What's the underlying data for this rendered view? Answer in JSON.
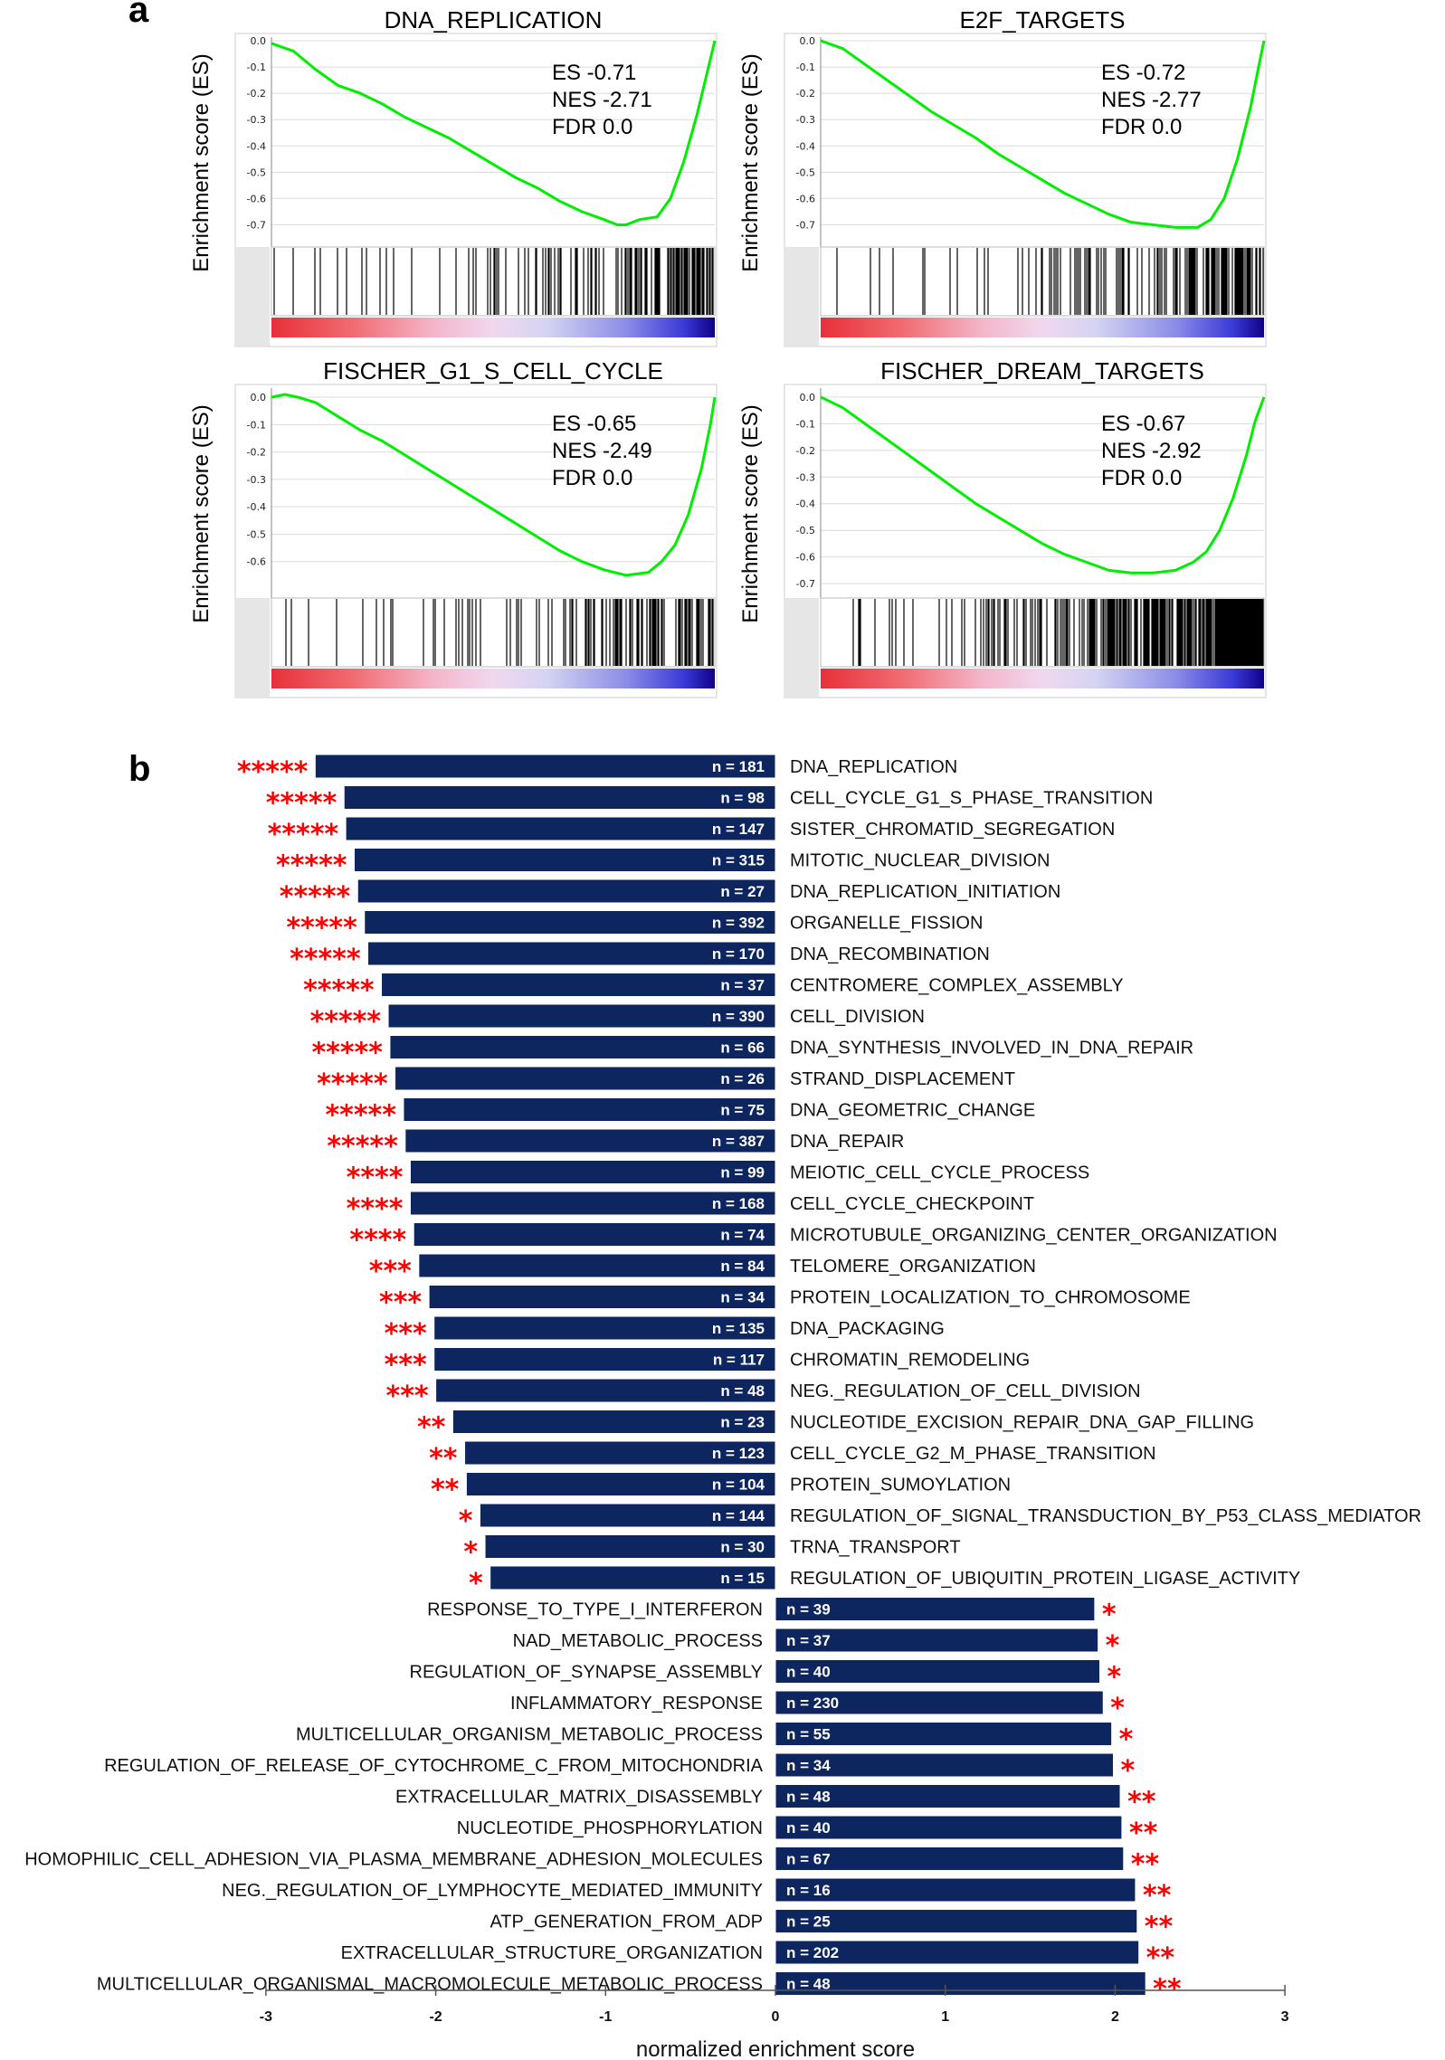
{
  "panel_a_label": "a",
  "panel_b_label": "b",
  "colors": {
    "bar": "#0e2660",
    "curve": "#00ee00",
    "stars": "#ff0000"
  },
  "chart_data": [
    {
      "type": "line",
      "title": "DNA_REPLICATION",
      "ylabel": "Enrichment score (ES)",
      "yticks": [
        "0.0",
        "-0.1",
        "-0.2",
        "-0.3",
        "-0.4",
        "-0.5",
        "-0.6",
        "-0.7"
      ],
      "ylim": [
        -0.75,
        0.0
      ],
      "stats": {
        "es": "ES -0.71",
        "nes": "NES -2.71",
        "fdr": "FDR 0.0"
      },
      "curve": {
        "x": [
          0,
          0.05,
          0.1,
          0.15,
          0.2,
          0.25,
          0.3,
          0.35,
          0.4,
          0.45,
          0.5,
          0.55,
          0.6,
          0.65,
          0.7,
          0.75,
          0.78,
          0.8,
          0.83,
          0.87,
          0.9,
          0.93,
          0.96,
          0.98,
          1.0
        ],
        "y": [
          -0.01,
          -0.04,
          -0.11,
          -0.17,
          -0.2,
          -0.24,
          -0.29,
          -0.33,
          -0.37,
          -0.42,
          -0.47,
          -0.52,
          -0.56,
          -0.61,
          -0.65,
          -0.68,
          -0.7,
          -0.7,
          -0.68,
          -0.67,
          -0.6,
          -0.46,
          -0.28,
          -0.14,
          0.0
        ]
      }
    },
    {
      "type": "line",
      "title": "E2F_TARGETS",
      "ylabel": "Enrichment score (ES)",
      "yticks": [
        "0.0",
        "-0.1",
        "-0.2",
        "-0.3",
        "-0.4",
        "-0.5",
        "-0.6",
        "-0.7"
      ],
      "ylim": [
        -0.75,
        0.0
      ],
      "stats": {
        "es": "ES -0.72",
        "nes": "NES -2.77",
        "fdr": "FDR 0.0"
      },
      "curve": {
        "x": [
          0,
          0.05,
          0.1,
          0.15,
          0.2,
          0.25,
          0.3,
          0.35,
          0.4,
          0.45,
          0.5,
          0.55,
          0.6,
          0.65,
          0.7,
          0.75,
          0.8,
          0.85,
          0.88,
          0.91,
          0.94,
          0.97,
          0.99,
          1.0
        ],
        "y": [
          0.0,
          -0.03,
          -0.09,
          -0.15,
          -0.21,
          -0.27,
          -0.32,
          -0.37,
          -0.43,
          -0.48,
          -0.53,
          -0.58,
          -0.62,
          -0.66,
          -0.69,
          -0.7,
          -0.71,
          -0.71,
          -0.68,
          -0.6,
          -0.45,
          -0.25,
          -0.08,
          0.0
        ]
      }
    },
    {
      "type": "line",
      "title": "FISCHER_G1_S_CELL_CYCLE",
      "ylabel": "Enrichment score (ES)",
      "yticks": [
        "0.0",
        "-0.1",
        "-0.2",
        "-0.3",
        "-0.4",
        "-0.5",
        "-0.6"
      ],
      "ylim": [
        -0.7,
        0.02
      ],
      "stats": {
        "es": "ES -0.65",
        "nes": "NES -2.49",
        "fdr": "FDR 0.0"
      },
      "curve": {
        "x": [
          0,
          0.03,
          0.06,
          0.1,
          0.15,
          0.2,
          0.25,
          0.3,
          0.35,
          0.4,
          0.45,
          0.5,
          0.55,
          0.6,
          0.65,
          0.7,
          0.75,
          0.8,
          0.85,
          0.88,
          0.91,
          0.94,
          0.97,
          0.99,
          1.0
        ],
        "y": [
          0.0,
          0.01,
          0.0,
          -0.02,
          -0.07,
          -0.12,
          -0.16,
          -0.21,
          -0.26,
          -0.31,
          -0.36,
          -0.41,
          -0.46,
          -0.51,
          -0.56,
          -0.6,
          -0.63,
          -0.65,
          -0.64,
          -0.6,
          -0.54,
          -0.43,
          -0.26,
          -0.1,
          0.0
        ]
      }
    },
    {
      "type": "line",
      "title": "FISCHER_DREAM_TARGETS",
      "ylabel": "Enrichment score (ES)",
      "yticks": [
        "0.0",
        "-0.1",
        "-0.2",
        "-0.3",
        "-0.4",
        "-0.5",
        "-0.6",
        "-0.7"
      ],
      "ylim": [
        -0.72,
        0.02
      ],
      "stats": {
        "es": "ES -0.67",
        "nes": "NES -2.92",
        "fdr": "FDR 0.0"
      },
      "curve": {
        "x": [
          0,
          0.05,
          0.1,
          0.15,
          0.2,
          0.25,
          0.3,
          0.35,
          0.4,
          0.45,
          0.5,
          0.55,
          0.6,
          0.65,
          0.7,
          0.75,
          0.8,
          0.84,
          0.87,
          0.9,
          0.93,
          0.96,
          0.98,
          1.0
        ],
        "y": [
          0.0,
          -0.04,
          -0.1,
          -0.16,
          -0.22,
          -0.28,
          -0.34,
          -0.4,
          -0.45,
          -0.5,
          -0.55,
          -0.59,
          -0.62,
          -0.65,
          -0.66,
          -0.66,
          -0.65,
          -0.62,
          -0.58,
          -0.5,
          -0.38,
          -0.22,
          -0.09,
          0.0
        ]
      }
    },
    {
      "type": "bar",
      "orientation": "horizontal",
      "xlabel": "normalized enrichment score",
      "xlim": [
        -3,
        3
      ],
      "xticks": [
        "-3",
        "-2",
        "-1",
        "0",
        "1",
        "2",
        "3"
      ],
      "bars": [
        {
          "term": "DNA_REPLICATION",
          "nes": -2.71,
          "n": "n = 181",
          "stars": "*****"
        },
        {
          "term": "CELL_CYCLE_G1_S_PHASE_TRANSITION",
          "nes": -2.54,
          "n": "n = 98",
          "stars": "*****"
        },
        {
          "term": "SISTER_CHROMATID_SEGREGATION",
          "nes": -2.53,
          "n": "n = 147",
          "stars": "*****"
        },
        {
          "term": "MITOTIC_NUCLEAR_DIVISION",
          "nes": -2.48,
          "n": "n = 315",
          "stars": "*****"
        },
        {
          "term": "DNA_REPLICATION_INITIATION",
          "nes": -2.46,
          "n": "n = 27",
          "stars": "*****"
        },
        {
          "term": "ORGANELLE_FISSION",
          "nes": -2.42,
          "n": "n = 392",
          "stars": "*****"
        },
        {
          "term": "DNA_RECOMBINATION",
          "nes": -2.4,
          "n": "n = 170",
          "stars": "*****"
        },
        {
          "term": "CENTROMERE_COMPLEX_ASSEMBLY",
          "nes": -2.32,
          "n": "n = 37",
          "stars": "*****"
        },
        {
          "term": "CELL_DIVISION",
          "nes": -2.28,
          "n": "n = 390",
          "stars": "*****"
        },
        {
          "term": "DNA_SYNTHESIS_INVOLVED_IN_DNA_REPAIR",
          "nes": -2.27,
          "n": "n = 66",
          "stars": "*****"
        },
        {
          "term": "STRAND_DISPLACEMENT",
          "nes": -2.24,
          "n": "n = 26",
          "stars": "*****"
        },
        {
          "term": "DNA_GEOMETRIC_CHANGE",
          "nes": -2.19,
          "n": "n = 75",
          "stars": "*****"
        },
        {
          "term": "DNA_REPAIR",
          "nes": -2.18,
          "n": "n = 387",
          "stars": "*****"
        },
        {
          "term": "MEIOTIC_CELL_CYCLE_PROCESS",
          "nes": -2.15,
          "n": "n = 99",
          "stars": "****"
        },
        {
          "term": "CELL_CYCLE_CHECKPOINT",
          "nes": -2.15,
          "n": "n = 168",
          "stars": "****"
        },
        {
          "term": "MICROTUBULE_ORGANIZING_CENTER_ORGANIZATION",
          "nes": -2.13,
          "n": "n = 74",
          "stars": "****"
        },
        {
          "term": "TELOMERE_ORGANIZATION",
          "nes": -2.1,
          "n": "n = 84",
          "stars": "***"
        },
        {
          "term": "PROTEIN_LOCALIZATION_TO_CHROMOSOME",
          "nes": -2.04,
          "n": "n = 34",
          "stars": "***"
        },
        {
          "term": "DNA_PACKAGING",
          "nes": -2.01,
          "n": "n = 135",
          "stars": "***"
        },
        {
          "term": "CHROMATIN_REMODELING",
          "nes": -2.01,
          "n": "n = 117",
          "stars": "***"
        },
        {
          "term": "NEG._REGULATION_OF_CELL_DIVISION",
          "nes": -2.0,
          "n": "n = 48",
          "stars": "***"
        },
        {
          "term": "NUCLEOTIDE_EXCISION_REPAIR_DNA_GAP_FILLING",
          "nes": -1.9,
          "n": "n = 23",
          "stars": "**"
        },
        {
          "term": "CELL_CYCLE_G2_M_PHASE_TRANSITION",
          "nes": -1.83,
          "n": "n = 123",
          "stars": "**"
        },
        {
          "term": "PROTEIN_SUMOYLATION",
          "nes": -1.82,
          "n": "n = 104",
          "stars": "**"
        },
        {
          "term": "REGULATION_OF_SIGNAL_TRANSDUCTION_BY_P53_CLASS_MEDIATOR",
          "nes": -1.74,
          "n": "n = 144",
          "stars": "*"
        },
        {
          "term": "TRNA_TRANSPORT",
          "nes": -1.71,
          "n": "n = 30",
          "stars": "*"
        },
        {
          "term": "REGULATION_OF_UBIQUITIN_PROTEIN_LIGASE_ACTIVITY",
          "nes": -1.68,
          "n": "n = 15",
          "stars": "*"
        },
        {
          "term": "RESPONSE_TO_TYPE_I_INTERFERON",
          "nes": 1.88,
          "n": "n = 39",
          "stars": "*"
        },
        {
          "term": "NAD_METABOLIC_PROCESS",
          "nes": 1.9,
          "n": "n = 37",
          "stars": "*"
        },
        {
          "term": "REGULATION_OF_SYNAPSE_ASSEMBLY",
          "nes": 1.91,
          "n": "n = 40",
          "stars": "*"
        },
        {
          "term": "INFLAMMATORY_RESPONSE",
          "nes": 1.93,
          "n": "n = 230",
          "stars": "*"
        },
        {
          "term": "MULTICELLULAR_ORGANISM_METABOLIC_PROCESS",
          "nes": 1.98,
          "n": "n = 55",
          "stars": "*"
        },
        {
          "term": "REGULATION_OF_RELEASE_OF_CYTOCHROME_C_FROM_MITOCHONDRIA",
          "nes": 1.99,
          "n": "n = 34",
          "stars": "*"
        },
        {
          "term": "EXTRACELLULAR_MATRIX_DISASSEMBLY",
          "nes": 2.03,
          "n": "n = 48",
          "stars": "**"
        },
        {
          "term": "NUCLEOTIDE_PHOSPHORYLATION",
          "nes": 2.04,
          "n": "n = 40",
          "stars": "**"
        },
        {
          "term": "HOMOPHILIC_CELL_ADHESION_VIA_PLASMA_MEMBRANE_ADHESION_MOLECULES",
          "nes": 2.05,
          "n": "n = 67",
          "stars": "**"
        },
        {
          "term": "NEG._REGULATION_OF_LYMPHOCYTE_MEDIATED_IMMUNITY",
          "nes": 2.12,
          "n": "n = 16",
          "stars": "**"
        },
        {
          "term": "ATP_GENERATION_FROM_ADP",
          "nes": 2.13,
          "n": "n = 25",
          "stars": "**"
        },
        {
          "term": "EXTRACELLULAR_STRUCTURE_ORGANIZATION",
          "nes": 2.14,
          "n": "n = 202",
          "stars": "**"
        },
        {
          "term": "MULTICELLULAR_ORGANISMAL_MACROMOLECULE_METABOLIC_PROCESS",
          "nes": 2.18,
          "n": "n = 48",
          "stars": "**"
        }
      ]
    }
  ]
}
